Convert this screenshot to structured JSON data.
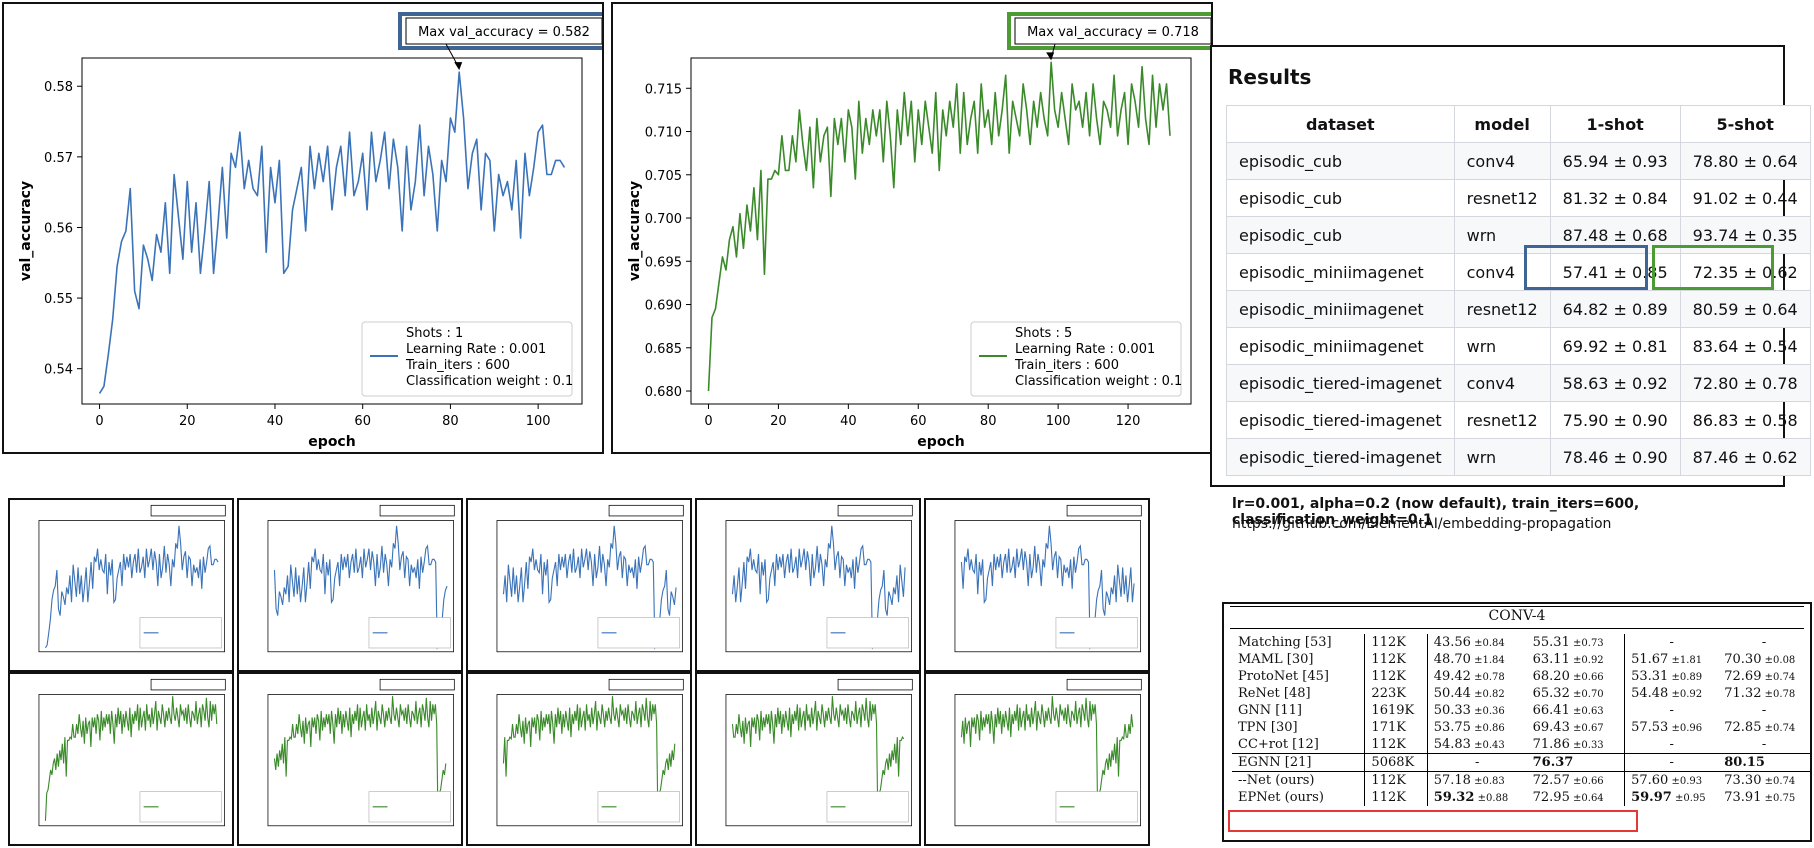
{
  "colors": {
    "blue": "#3b73b9",
    "green": "#3a8a2a",
    "red": "#e53935",
    "blue_box": "#3f6594",
    "green_box": "#4c9b33"
  },
  "chart_data": [
    {
      "type": "line",
      "title": "",
      "xlabel": "epoch",
      "ylabel": "val_accuracy",
      "xlim": [
        -4,
        110
      ],
      "ylim": [
        0.535,
        0.584
      ],
      "xticks": [
        0,
        20,
        40,
        60,
        80,
        100
      ],
      "yticks": [
        0.54,
        0.55,
        0.56,
        0.57,
        0.58
      ],
      "ytick_labels": [
        "0.54",
        "0.55",
        "0.56",
        "0.57",
        "0.58"
      ],
      "annotation": "Max val_accuracy = 0.582",
      "max_point": [
        82,
        0.582
      ],
      "legend": [
        "Shots : 1",
        "Learning Rate : 0.001",
        "Train_iters : 600",
        "Classification weight : 0.1"
      ],
      "legend_position": "lower-right",
      "series": [
        {
          "name": "val_accuracy",
          "color": "#3b73b9",
          "values": [
            0.5365,
            0.5375,
            0.542,
            0.547,
            0.5545,
            0.558,
            0.5595,
            0.5655,
            0.551,
            0.5485,
            0.5575,
            0.5555,
            0.5525,
            0.559,
            0.5565,
            0.5635,
            0.5535,
            0.5675,
            0.5615,
            0.5555,
            0.5665,
            0.5565,
            0.5635,
            0.5535,
            0.5595,
            0.5665,
            0.5535,
            0.5605,
            0.5685,
            0.5585,
            0.5705,
            0.5685,
            0.5735,
            0.5655,
            0.5695,
            0.5655,
            0.5645,
            0.5715,
            0.5565,
            0.5685,
            0.5635,
            0.5695,
            0.5535,
            0.5545,
            0.5625,
            0.5655,
            0.5685,
            0.5595,
            0.5715,
            0.5655,
            0.5705,
            0.5665,
            0.5715,
            0.5625,
            0.5685,
            0.5715,
            0.5645,
            0.5735,
            0.5645,
            0.5665,
            0.5705,
            0.5625,
            0.5735,
            0.5665,
            0.5695,
            0.5735,
            0.5655,
            0.5725,
            0.5685,
            0.5595,
            0.5715,
            0.5625,
            0.5665,
            0.5745,
            0.5645,
            0.5715,
            0.5675,
            0.5595,
            0.5695,
            0.5665,
            0.5755,
            0.5735,
            0.582,
            0.5755,
            0.5655,
            0.5705,
            0.5725,
            0.5625,
            0.5705,
            0.5695,
            0.5595,
            0.5675,
            0.5645,
            0.5665,
            0.5625,
            0.5695,
            0.5585,
            0.5705,
            0.5645,
            0.5685,
            0.5735,
            0.5745,
            0.5675,
            0.5675,
            0.5695,
            0.5695,
            0.5685
          ]
        }
      ]
    },
    {
      "type": "line",
      "title": "",
      "xlabel": "epoch",
      "ylabel": "val_accuracy",
      "xlim": [
        -5,
        138
      ],
      "ylim": [
        0.6785,
        0.7185
      ],
      "xticks": [
        0,
        20,
        40,
        60,
        80,
        100,
        120
      ],
      "yticks": [
        0.68,
        0.685,
        0.69,
        0.695,
        0.7,
        0.705,
        0.71,
        0.715
      ],
      "ytick_labels": [
        "0.680",
        "0.685",
        "0.690",
        "0.695",
        "0.700",
        "0.705",
        "0.710",
        "0.715"
      ],
      "annotation": "Max val_accuracy = 0.718",
      "max_point": [
        98,
        0.718
      ],
      "legend": [
        "Shots : 5",
        "Learning Rate : 0.001",
        "Train_iters : 600",
        "Classification weight : 0.1"
      ],
      "legend_position": "lower-right",
      "series": [
        {
          "name": "val_accuracy",
          "color": "#3a8a2a",
          "values": [
            0.68,
            0.6885,
            0.6895,
            0.6925,
            0.6955,
            0.694,
            0.6975,
            0.699,
            0.6955,
            0.7005,
            0.6965,
            0.7015,
            0.6985,
            0.7035,
            0.6975,
            0.7055,
            0.6935,
            0.7045,
            0.7045,
            0.7055,
            0.705,
            0.7095,
            0.7055,
            0.7055,
            0.7095,
            0.7065,
            0.7125,
            0.7085,
            0.7055,
            0.7105,
            0.7035,
            0.7115,
            0.7065,
            0.7095,
            0.7105,
            0.7025,
            0.7115,
            0.7085,
            0.7115,
            0.7065,
            0.7125,
            0.7105,
            0.7045,
            0.7135,
            0.7075,
            0.7115,
            0.7085,
            0.7125,
            0.7095,
            0.7125,
            0.7065,
            0.7135,
            0.7095,
            0.7035,
            0.7125,
            0.7085,
            0.7145,
            0.7095,
            0.7135,
            0.7065,
            0.7125,
            0.7085,
            0.7135,
            0.7105,
            0.7075,
            0.7145,
            0.7055,
            0.7125,
            0.7095,
            0.7135,
            0.7105,
            0.7155,
            0.7075,
            0.7145,
            0.7085,
            0.7115,
            0.7135,
            0.7075,
            0.7155,
            0.7105,
            0.7125,
            0.7085,
            0.7145,
            0.7095,
            0.7125,
            0.7165,
            0.7075,
            0.7135,
            0.7115,
            0.7095,
            0.7155,
            0.7125,
            0.7085,
            0.7135,
            0.7105,
            0.7145,
            0.7115,
            0.7095,
            0.718,
            0.7125,
            0.7105,
            0.7145,
            0.7115,
            0.7085,
            0.7155,
            0.7125,
            0.7135,
            0.7105,
            0.7145,
            0.7095,
            0.7155,
            0.7115,
            0.7085,
            0.7135,
            0.7125,
            0.7105,
            0.7165,
            0.7095,
            0.7125,
            0.7145,
            0.7085,
            0.7155,
            0.7135,
            0.7105,
            0.7175,
            0.7115,
            0.7085,
            0.7165,
            0.7105,
            0.7155,
            0.7125,
            0.7155,
            0.7095
          ]
        }
      ]
    }
  ],
  "results": {
    "title": "Results",
    "columns": [
      "dataset",
      "model",
      "1-shot",
      "5-shot"
    ],
    "rows": [
      [
        "episodic_cub",
        "conv4",
        "65.94 ± 0.93",
        "78.80 ± 0.64"
      ],
      [
        "episodic_cub",
        "resnet12",
        "81.32 ± 0.84",
        "91.02 ± 0.44"
      ],
      [
        "episodic_cub",
        "wrn",
        "87.48 ± 0.68",
        "93.74 ± 0.35"
      ],
      [
        "episodic_miniimagenet",
        "conv4",
        "57.41 ± 0.85",
        "72.35 ± 0.62"
      ],
      [
        "episodic_miniimagenet",
        "resnet12",
        "64.82 ± 0.89",
        "80.59 ± 0.64"
      ],
      [
        "episodic_miniimagenet",
        "wrn",
        "69.92 ± 0.81",
        "83.64 ± 0.54"
      ],
      [
        "episodic_tiered-imagenet",
        "conv4",
        "58.63 ± 0.92",
        "72.80 ± 0.78"
      ],
      [
        "episodic_tiered-imagenet",
        "resnet12",
        "75.90 ± 0.90",
        "86.83 ± 0.58"
      ],
      [
        "episodic_tiered-imagenet",
        "wrn",
        "78.46 ± 0.90",
        "87.46 ± 0.62"
      ]
    ]
  },
  "notes": {
    "config": "lr=0.001, alpha=0.2 (now default), train_iters=600, classification_weight=0.1",
    "url": "https://github.com/ElementAI/embedding-propagation"
  },
  "paper_table": {
    "caption": "CONV-4",
    "rows": [
      {
        "name": "Matching",
        "ref": "[53]",
        "params": "112K",
        "a": "43.56",
        "as": "±0.84",
        "b": "55.31",
        "bs": "±0.73",
        "c": "-",
        "cs": "",
        "d": "-",
        "ds": ""
      },
      {
        "name": "MAML",
        "ref": "[30]",
        "params": "112K",
        "a": "48.70",
        "as": "±1.84",
        "b": "63.11",
        "bs": "±0.92",
        "c": "51.67",
        "cs": "±1.81",
        "d": "70.30",
        "ds": "±0.08"
      },
      {
        "name": "ProtoNet",
        "ref": "[45]",
        "params": "112K",
        "a": "49.42",
        "as": "±0.78",
        "b": "68.20",
        "bs": "±0.66",
        "c": "53.31",
        "cs": "±0.89",
        "d": "72.69",
        "ds": "±0.74"
      },
      {
        "name": "ReNet",
        "ref": "[48]",
        "params": "223K",
        "a": "50.44",
        "as": "±0.82",
        "b": "65.32",
        "bs": "±0.70",
        "c": "54.48",
        "cs": "±0.92",
        "d": "71.32",
        "ds": "±0.78"
      },
      {
        "name": "GNN",
        "ref": "[11]",
        "params": "1619K",
        "a": "50.33",
        "as": "±0.36",
        "b": "66.41",
        "bs": "±0.63",
        "c": "-",
        "cs": "",
        "d": "-",
        "ds": ""
      },
      {
        "name": "TPN",
        "ref": "[30]",
        "params": "171K",
        "a": "53.75",
        "as": "±0.86",
        "b": "69.43",
        "bs": "±0.67",
        "c": "57.53",
        "cs": "±0.96",
        "d": "72.85",
        "ds": "±0.74"
      },
      {
        "name": "CC+rot",
        "ref": "[12]",
        "params": "112K",
        "a": "54.83",
        "as": "±0.43",
        "b": "71.86",
        "bs": "±0.33",
        "c": "-",
        "cs": "",
        "d": "-",
        "ds": ""
      },
      {
        "name": "EGNN",
        "ref": "[21]",
        "params": "5068K",
        "a": "-",
        "as": "",
        "b": "76.37",
        "bs": "",
        "c": "-",
        "cs": "",
        "d": "80.15",
        "ds": ""
      },
      {
        "name": "--Net (ours)",
        "ref": "",
        "params": "112K",
        "a": "57.18",
        "as": "±0.83",
        "b": "72.57",
        "bs": "±0.66",
        "c": "57.60",
        "cs": "±0.93",
        "d": "73.30",
        "ds": "±0.74"
      },
      {
        "name": "EPNet (ours)",
        "ref": "",
        "params": "112K",
        "a": "59.32",
        "as": "±0.88",
        "b": "72.95",
        "bs": "±0.64",
        "c": "59.97",
        "cs": "±0.95",
        "d": "73.91",
        "ds": "±0.75"
      }
    ]
  }
}
